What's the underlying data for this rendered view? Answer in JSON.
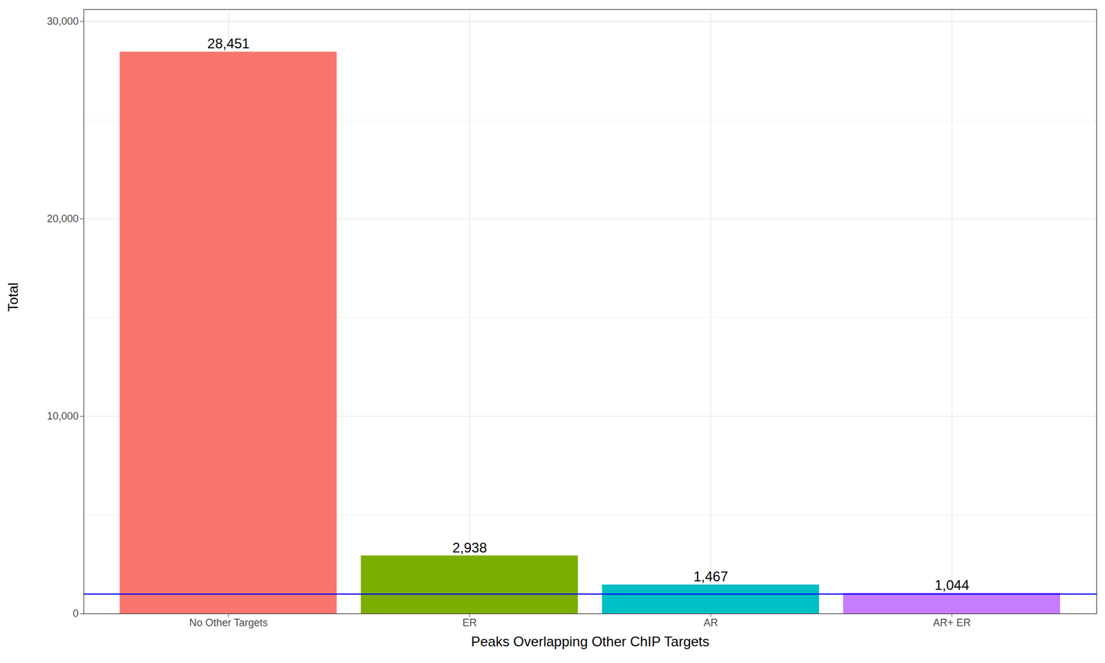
{
  "chart_data": {
    "type": "bar",
    "x_label": "Peaks Overlapping Other ChIP Targets",
    "y_label": "Total",
    "categories": [
      "No Other Targets",
      "ER",
      "AR",
      "AR+ ER"
    ],
    "values": [
      28451,
      2938,
      1467,
      1044
    ],
    "value_labels": [
      "28,451",
      "2,938",
      "1,467",
      "1,044"
    ],
    "colors": [
      "#F8766D",
      "#7CAE00",
      "#00BFC4",
      "#C77CFF"
    ],
    "ylim": [
      0,
      30600
    ],
    "yticks": [
      0,
      {
        "value": 10000,
        "label": "10,000"
      },
      {
        "value": 20000,
        "label": "20,000"
      },
      {
        "value": 30000,
        "label": "30,000"
      }
    ],
    "grid": true,
    "data_labels": true,
    "hline": {
      "value": 1000,
      "color": "#0000ff"
    }
  }
}
